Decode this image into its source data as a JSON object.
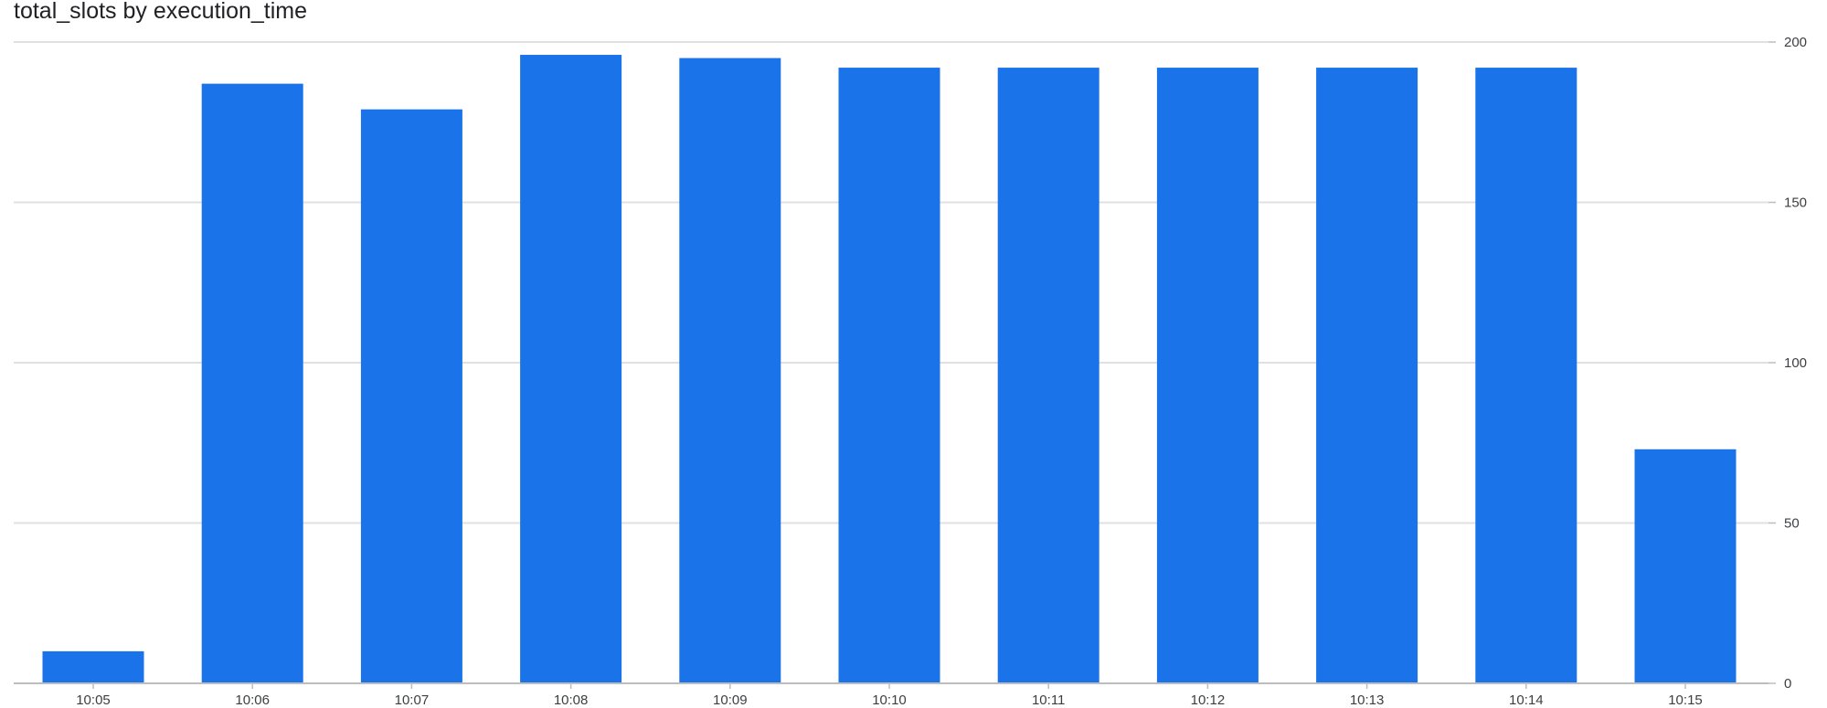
{
  "chart_data": {
    "type": "bar",
    "title": "total_slots by execution_time",
    "xlabel": "",
    "ylabel": "",
    "categories": [
      "10:05",
      "10:06",
      "10:07",
      "10:08",
      "10:09",
      "10:10",
      "10:11",
      "10:12",
      "10:13",
      "10:14",
      "10:15"
    ],
    "values": [
      10,
      187,
      179,
      196,
      195,
      192,
      192,
      192,
      192,
      192,
      73
    ],
    "ylim": [
      0,
      200
    ],
    "yticks": [
      "0",
      "50",
      "100",
      "150",
      "200"
    ],
    "y_axis_position": "right",
    "grid": true,
    "legend": "none",
    "bar_color": "#1a73e8",
    "grid_color": "#e0e0e0",
    "axis_color": "#bdbdbd"
  }
}
